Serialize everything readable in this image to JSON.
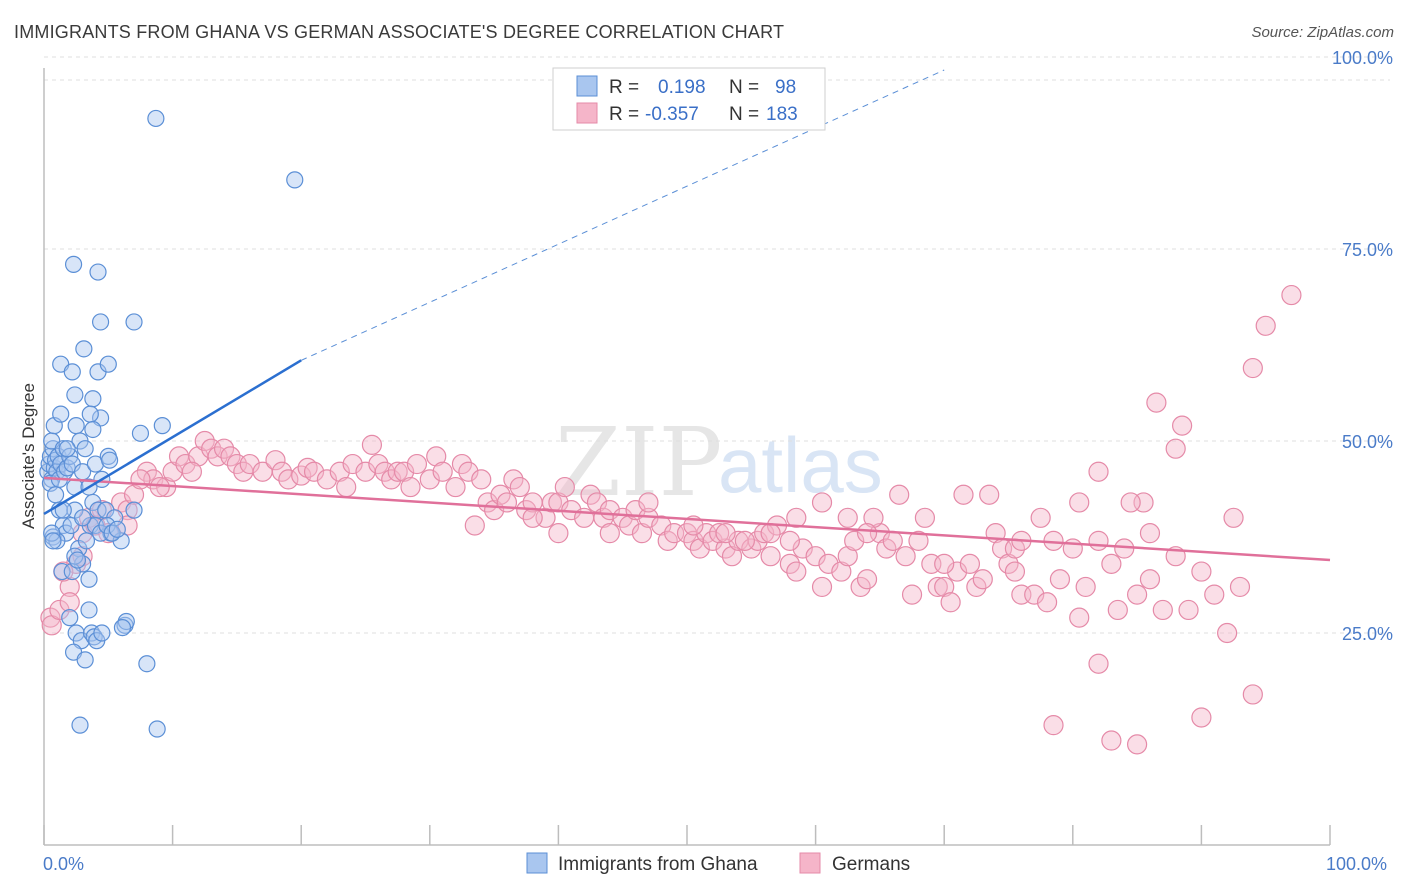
{
  "header": {
    "title": "IMMIGRANTS FROM GHANA VS GERMAN ASSOCIATE'S DEGREE CORRELATION CHART",
    "source": "Source: ZipAtlas.com"
  },
  "watermark": {
    "zip": "ZIP",
    "atlas": "atlas"
  },
  "legend": {
    "r_label": "R =",
    "n_label": "N =",
    "rows": [
      {
        "r": "0.198",
        "n": "98"
      },
      {
        "r": "-0.357",
        "n": "183"
      }
    ]
  },
  "colors": {
    "blue_fill": "#a9c6ef",
    "blue_stroke": "#5b8fd6",
    "blue_line": "#2b6fd0",
    "pink_fill": "#f5b5c9",
    "pink_stroke": "#e58aa8",
    "pink_line": "#e0709a",
    "axis_text": "#4a7bc8",
    "grid": "#dfdfdf"
  },
  "chart_data": {
    "type": "scatter",
    "title": "IMMIGRANTS FROM GHANA VS GERMAN ASSOCIATE'S DEGREE CORRELATION CHART",
    "ylabel": "Associate's Degree",
    "xlim": [
      0,
      100
    ],
    "ylim": [
      0,
      100
    ],
    "x_tick_labels": [
      "0.0%",
      "100.0%"
    ],
    "y_ticks": [
      25,
      50,
      75,
      100
    ],
    "y_tick_labels": [
      "25.0%",
      "50.0%",
      "75.0%",
      "100.0%"
    ],
    "grid": true,
    "series": [
      {
        "name": "Immigrants from Ghana",
        "r": 0.198,
        "n": 98,
        "trend": {
          "x0": 0,
          "y0": 40.5,
          "x1": 20,
          "y1": 60.5,
          "dash_to_x": 70,
          "dash_to_y": 110.5
        },
        "points": [
          [
            0.3,
            46
          ],
          [
            0.4,
            47
          ],
          [
            0.5,
            48
          ],
          [
            0.6,
            45
          ],
          [
            0.7,
            49
          ],
          [
            0.8,
            46.5
          ],
          [
            0.9,
            47.5
          ],
          [
            1.0,
            46
          ],
          [
            1.1,
            48
          ],
          [
            0.5,
            44.5
          ],
          [
            0.6,
            50
          ],
          [
            0.8,
            52
          ],
          [
            1.2,
            45
          ],
          [
            1.3,
            47
          ],
          [
            1.5,
            49
          ],
          [
            1.6,
            46
          ],
          [
            1.8,
            46.5
          ],
          [
            2.0,
            48
          ],
          [
            2.2,
            47
          ],
          [
            2.4,
            44
          ],
          [
            2.5,
            52
          ],
          [
            2.8,
            50
          ],
          [
            3.0,
            46
          ],
          [
            3.2,
            49
          ],
          [
            3.5,
            44
          ],
          [
            3.8,
            42
          ],
          [
            4.0,
            47
          ],
          [
            4.2,
            41
          ],
          [
            4.5,
            45
          ],
          [
            4.8,
            41
          ],
          [
            5.0,
            48
          ],
          [
            5.2,
            38
          ],
          [
            5.5,
            40
          ],
          [
            6.0,
            37
          ],
          [
            7.0,
            41
          ],
          [
            0.9,
            43
          ],
          [
            1.2,
            41
          ],
          [
            1.5,
            39
          ],
          [
            1.7,
            38
          ],
          [
            2.1,
            39
          ],
          [
            2.4,
            41
          ],
          [
            2.7,
            36
          ],
          [
            3.0,
            34
          ],
          [
            3.3,
            37
          ],
          [
            3.6,
            39
          ],
          [
            4.0,
            39
          ],
          [
            4.4,
            38
          ],
          [
            4.9,
            39
          ],
          [
            5.3,
            38
          ],
          [
            5.7,
            38.5
          ],
          [
            0.7,
            37.5
          ],
          [
            1.0,
            37
          ],
          [
            1.4,
            33
          ],
          [
            2.2,
            33
          ],
          [
            2.4,
            35
          ],
          [
            3.5,
            32
          ],
          [
            2.0,
            27
          ],
          [
            3.5,
            28
          ],
          [
            2.5,
            25
          ],
          [
            2.9,
            24
          ],
          [
            3.7,
            25
          ],
          [
            3.9,
            24.5
          ],
          [
            4.1,
            24
          ],
          [
            4.5,
            25
          ],
          [
            2.3,
            22.5
          ],
          [
            3.2,
            21.5
          ],
          [
            6.3,
            26
          ],
          [
            6.4,
            26.5
          ],
          [
            6.1,
            25.7
          ],
          [
            8.0,
            21
          ],
          [
            1.3,
            60
          ],
          [
            2.2,
            59
          ],
          [
            3.1,
            62
          ],
          [
            4.2,
            59
          ],
          [
            5.0,
            60
          ],
          [
            2.4,
            56
          ],
          [
            3.8,
            55.5
          ],
          [
            1.3,
            53.5
          ],
          [
            4.4,
            53
          ],
          [
            3.6,
            53.5
          ],
          [
            2.3,
            73
          ],
          [
            4.2,
            72
          ],
          [
            4.4,
            65.5
          ],
          [
            7.0,
            65.5
          ],
          [
            9.2,
            52
          ],
          [
            7.5,
            51
          ],
          [
            3.8,
            51.5
          ],
          [
            5.1,
            47.5
          ],
          [
            8.7,
            92
          ],
          [
            19.5,
            84
          ],
          [
            2.8,
            13
          ],
          [
            8.8,
            12.5
          ],
          [
            0.6,
            38
          ],
          [
            0.7,
            37
          ],
          [
            1.5,
            41
          ],
          [
            1.8,
            49
          ],
          [
            2.6,
            34.5
          ],
          [
            3.0,
            40
          ]
        ]
      },
      {
        "name": "Germans",
        "r": -0.357,
        "n": 183,
        "trend": {
          "x0": 0,
          "y0": 45.2,
          "x1": 100,
          "y1": 34.5
        },
        "points": [
          [
            0.5,
            27
          ],
          [
            0.6,
            26
          ],
          [
            1.2,
            28
          ],
          [
            2.0,
            31
          ],
          [
            2.5,
            34
          ],
          [
            3.0,
            38
          ],
          [
            3.5,
            40
          ],
          [
            4.0,
            39
          ],
          [
            5.0,
            38
          ],
          [
            6.0,
            42
          ],
          [
            6.5,
            41
          ],
          [
            7.0,
            43
          ],
          [
            8.0,
            46
          ],
          [
            8.5,
            45
          ],
          [
            9.5,
            44
          ],
          [
            10,
            46
          ],
          [
            10.5,
            48
          ],
          [
            11,
            47
          ],
          [
            12,
            48
          ],
          [
            12.5,
            50
          ],
          [
            13,
            49
          ],
          [
            13.5,
            48
          ],
          [
            14,
            49
          ],
          [
            14.5,
            48
          ],
          [
            15,
            47
          ],
          [
            15.5,
            46
          ],
          [
            16,
            47
          ],
          [
            17,
            46
          ],
          [
            18,
            47.5
          ],
          [
            18.5,
            46
          ],
          [
            19,
            45
          ],
          [
            20,
            45.5
          ],
          [
            20.5,
            46.5
          ],
          [
            21,
            46
          ],
          [
            22,
            45
          ],
          [
            23,
            46
          ],
          [
            23.5,
            44
          ],
          [
            24,
            47
          ],
          [
            25,
            46
          ],
          [
            25.5,
            49.5
          ],
          [
            26,
            47
          ],
          [
            26.5,
            46
          ],
          [
            27,
            45
          ],
          [
            27.5,
            46
          ],
          [
            28,
            46
          ],
          [
            28.5,
            44
          ],
          [
            29,
            47
          ],
          [
            30,
            45
          ],
          [
            30.5,
            48
          ],
          [
            31,
            46
          ],
          [
            32,
            44
          ],
          [
            32.5,
            47
          ],
          [
            33,
            46
          ],
          [
            34,
            45
          ],
          [
            34.5,
            42
          ],
          [
            35,
            41
          ],
          [
            35.5,
            43
          ],
          [
            36,
            42
          ],
          [
            36.5,
            45
          ],
          [
            37,
            44
          ],
          [
            37.5,
            41
          ],
          [
            38,
            42
          ],
          [
            39,
            40
          ],
          [
            39.5,
            42
          ],
          [
            40,
            42
          ],
          [
            40.5,
            44
          ],
          [
            41,
            41
          ],
          [
            42,
            40
          ],
          [
            42.5,
            43
          ],
          [
            43,
            42
          ],
          [
            43.5,
            40
          ],
          [
            44,
            41
          ],
          [
            45,
            40
          ],
          [
            45.5,
            39
          ],
          [
            46,
            41
          ],
          [
            46.5,
            38
          ],
          [
            47,
            40
          ],
          [
            48,
            39
          ],
          [
            48.5,
            37
          ],
          [
            49,
            38
          ],
          [
            50,
            38
          ],
          [
            50.5,
            37
          ],
          [
            51,
            36
          ],
          [
            51.5,
            38
          ],
          [
            52,
            37
          ],
          [
            53,
            36
          ],
          [
            53.5,
            35
          ],
          [
            54,
            37
          ],
          [
            55,
            36
          ],
          [
            55.5,
            37
          ],
          [
            56,
            38
          ],
          [
            56.5,
            35
          ],
          [
            57,
            39
          ],
          [
            58,
            34
          ],
          [
            58.5,
            33
          ],
          [
            59,
            36
          ],
          [
            60,
            35
          ],
          [
            60.5,
            31
          ],
          [
            61,
            34
          ],
          [
            62,
            33
          ],
          [
            62.5,
            35
          ],
          [
            63,
            37
          ],
          [
            63.5,
            31
          ],
          [
            64,
            32
          ],
          [
            65,
            38
          ],
          [
            65.5,
            36
          ],
          [
            66,
            37
          ],
          [
            67,
            35
          ],
          [
            67.5,
            30
          ],
          [
            68,
            37
          ],
          [
            69,
            34
          ],
          [
            69.5,
            31
          ],
          [
            70,
            31
          ],
          [
            70.5,
            29
          ],
          [
            71,
            33
          ],
          [
            72,
            34
          ],
          [
            72.5,
            31
          ],
          [
            73,
            32
          ],
          [
            74,
            38
          ],
          [
            74.5,
            36
          ],
          [
            75,
            34
          ],
          [
            75.5,
            33
          ],
          [
            76,
            30
          ],
          [
            77,
            30
          ],
          [
            78,
            29
          ],
          [
            78.5,
            37
          ],
          [
            79,
            32
          ],
          [
            80,
            36
          ],
          [
            80.5,
            27
          ],
          [
            81,
            31
          ],
          [
            82,
            21
          ],
          [
            83,
            34
          ],
          [
            83.5,
            28
          ],
          [
            84,
            36
          ],
          [
            85,
            30
          ],
          [
            85.5,
            42
          ],
          [
            86,
            38
          ],
          [
            87,
            28
          ],
          [
            88,
            49
          ],
          [
            88.5,
            52
          ],
          [
            89,
            28
          ],
          [
            90,
            14
          ],
          [
            91,
            30
          ],
          [
            92,
            25
          ],
          [
            92.5,
            40
          ],
          [
            93,
            31
          ],
          [
            94,
            17
          ],
          [
            95,
            65
          ],
          [
            97,
            69
          ],
          [
            82,
            46
          ],
          [
            84.5,
            42
          ],
          [
            86.5,
            55
          ],
          [
            94,
            59.5
          ],
          [
            77.5,
            40
          ],
          [
            75.5,
            36
          ],
          [
            73.5,
            43
          ],
          [
            71.5,
            43
          ],
          [
            68.5,
            40
          ],
          [
            66.5,
            43
          ],
          [
            64.5,
            40
          ],
          [
            62.5,
            40
          ],
          [
            60.5,
            42
          ],
          [
            58.5,
            40
          ],
          [
            56.5,
            38
          ],
          [
            54.5,
            37
          ],
          [
            52.5,
            38
          ],
          [
            50.5,
            39
          ],
          [
            78.5,
            13
          ],
          [
            83,
            11
          ],
          [
            85,
            10.5
          ],
          [
            80.5,
            42
          ],
          [
            86,
            32
          ],
          [
            88,
            35
          ],
          [
            90,
            33
          ],
          [
            11.5,
            46
          ],
          [
            9,
            44
          ],
          [
            7.5,
            45
          ],
          [
            6.5,
            39
          ],
          [
            4.5,
            41
          ],
          [
            3.0,
            35
          ],
          [
            2.0,
            29
          ],
          [
            1.5,
            33
          ],
          [
            33.5,
            39
          ],
          [
            40,
            38
          ],
          [
            47,
            42
          ],
          [
            53,
            38
          ],
          [
            58,
            37
          ],
          [
            64,
            38
          ],
          [
            70,
            34
          ],
          [
            76,
            37
          ],
          [
            82,
            37
          ],
          [
            44,
            38
          ],
          [
            38,
            40
          ]
        ]
      }
    ]
  },
  "bottom_legend": {
    "series_0": "Immigrants from Ghana",
    "series_1": "Germans"
  }
}
